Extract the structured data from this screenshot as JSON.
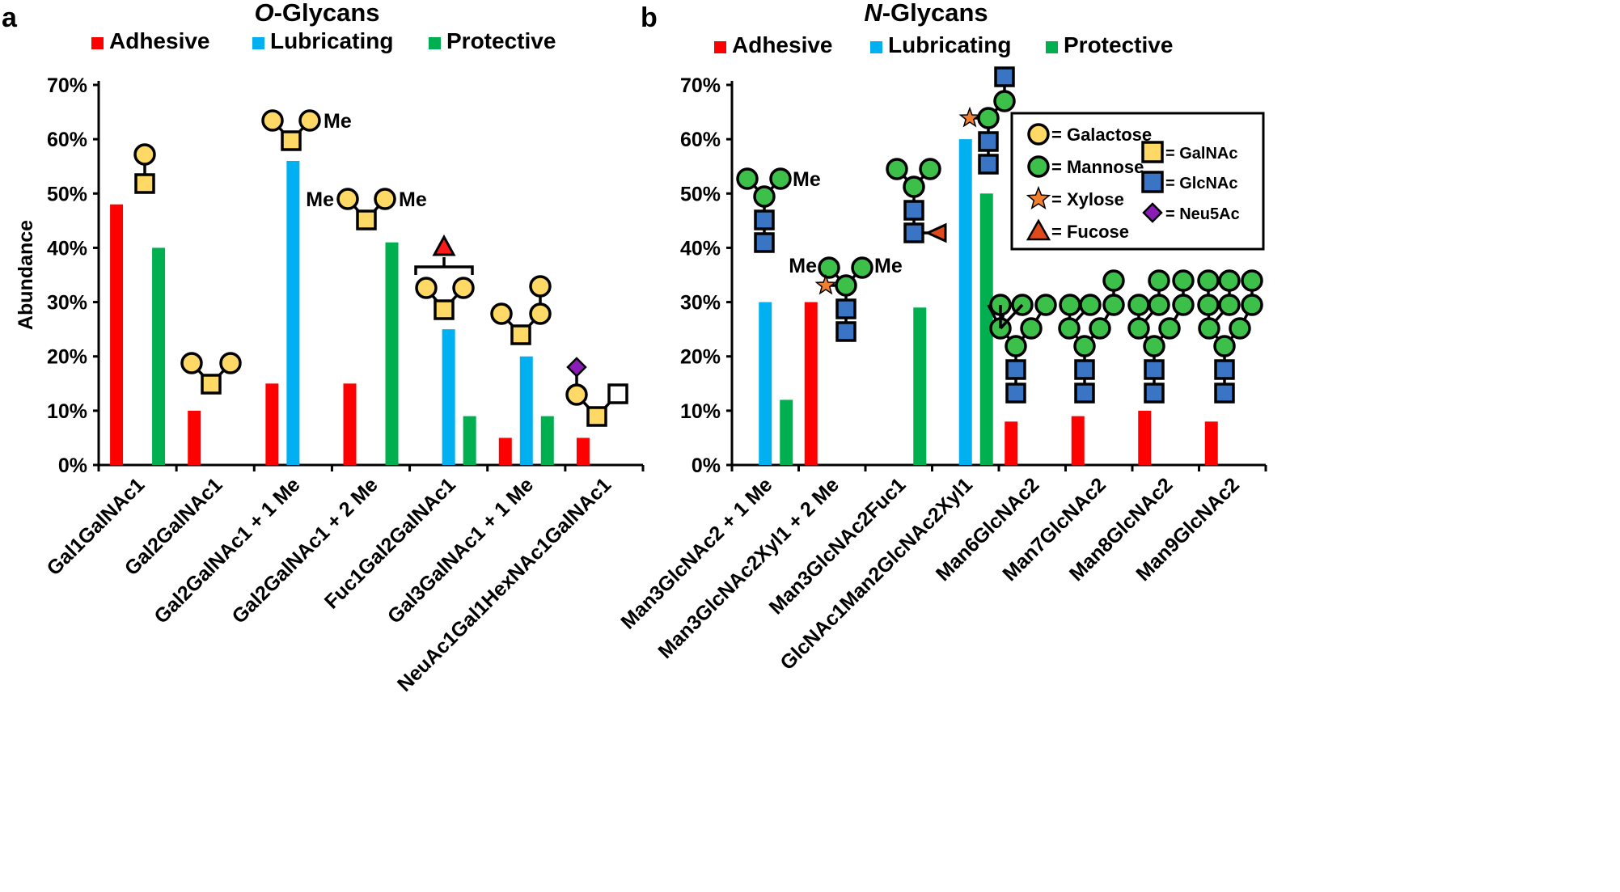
{
  "colors": {
    "adhesive": "#ff0000",
    "lubricating": "#00b0f0",
    "protective": "#00b050",
    "galactose": "#ffd966",
    "mannose": "#3cc04a",
    "galnac": "#ffd966",
    "glcnac": "#3a74c4",
    "xylose": "#f08030",
    "fucose": "#e04a1a",
    "neu5ac": "#8a1db8"
  },
  "chart_data": [
    {
      "panel_letter": "a",
      "type": "bar",
      "title_prefix": "O",
      "title_suffix": "-Glycans",
      "title": "O-Glycans",
      "ylabel": "Abundance",
      "ylim": [
        0,
        70
      ],
      "yticks": [
        "0%",
        "10%",
        "20%",
        "30%",
        "40%",
        "50%",
        "60%",
        "70%"
      ],
      "legend_placement": "top",
      "categories": [
        "Gal1GalNAc1",
        "Gal2GalNAc1",
        "Gal2GalNAc1 + 1 Me",
        "Gal2GalNAc1 + 2 Me",
        "Fuc1Gal2GalNAc1",
        "Gal3GalNAc1 + 1 Me",
        "NeuAc1Gal1HexNAc1GalNAc1"
      ],
      "series": [
        {
          "name": "Adhesive",
          "color_key": "adhesive",
          "values": [
            48,
            10,
            15,
            15,
            0,
            5,
            5
          ]
        },
        {
          "name": "Lubricating",
          "color_key": "lubricating",
          "values": [
            0,
            0,
            56,
            0,
            25,
            20,
            0
          ]
        },
        {
          "name": "Protective",
          "color_key": "protective",
          "values": [
            40,
            0,
            0,
            41,
            9,
            9,
            0
          ]
        }
      ],
      "annotations": [
        "Me",
        "Me",
        "Me"
      ]
    },
    {
      "panel_letter": "b",
      "type": "bar",
      "title_prefix": "N",
      "title_suffix": "-Glycans",
      "title": "N-Glycans",
      "ylabel": "",
      "ylim": [
        0,
        70
      ],
      "yticks": [
        "0%",
        "10%",
        "20%",
        "30%",
        "40%",
        "50%",
        "60%",
        "70%"
      ],
      "legend_placement": "top",
      "categories": [
        "Man3GlcNAc2 + 1 Me",
        "Man3GlcNAc2Xyl1 + 2 Me",
        "Man3GlcNAc2Fuc1",
        "GlcNAc1Man2GlcNAc2Xyl1",
        "Man6GlcNAc2",
        "Man7GlcNAc2",
        "Man8GlcNAc2",
        "Man9GlcNAc2"
      ],
      "series": [
        {
          "name": "Adhesive",
          "color_key": "adhesive",
          "values": [
            0,
            30,
            0,
            0,
            8,
            9,
            10,
            8
          ]
        },
        {
          "name": "Lubricating",
          "color_key": "lubricating",
          "values": [
            30,
            0,
            0,
            60,
            0,
            0,
            0,
            0
          ]
        },
        {
          "name": "Protective",
          "color_key": "protective",
          "values": [
            12,
            0,
            29,
            50,
            0,
            0,
            0,
            0
          ]
        }
      ],
      "annotations": [
        "Me",
        "Me",
        "Me"
      ]
    }
  ],
  "symbol_legend": [
    {
      "label": "= Galactose",
      "shape": "circle-icon",
      "color_key": "galactose"
    },
    {
      "label": "= Mannose",
      "shape": "circle-icon",
      "color_key": "mannose"
    },
    {
      "label": "= Xylose",
      "shape": "star-icon",
      "color_key": "xylose"
    },
    {
      "label": "= Fucose",
      "shape": "triangle-icon",
      "color_key": "fucose"
    },
    {
      "label": "= GalNAc",
      "shape": "square-icon",
      "color_key": "galnac"
    },
    {
      "label": "= GlcNAc",
      "shape": "square-icon",
      "color_key": "glcnac"
    },
    {
      "label": "= Neu5Ac",
      "shape": "diamond-icon",
      "color_key": "neu5ac"
    }
  ]
}
